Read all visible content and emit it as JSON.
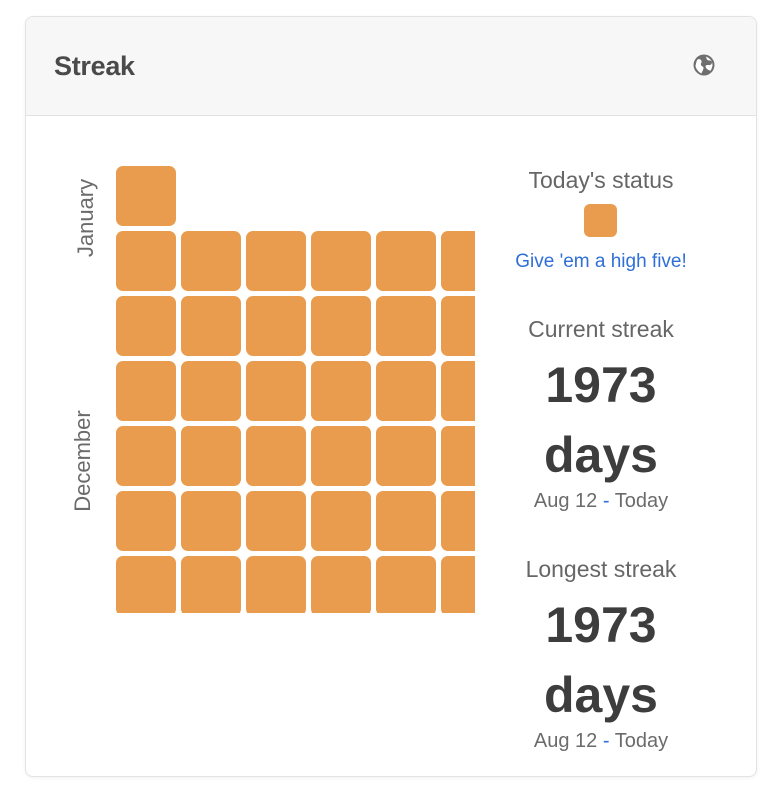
{
  "header": {
    "title": "Streak",
    "globe_icon": "globe-icon"
  },
  "colors": {
    "cell": "#E99C4D",
    "link": "#2F6FD6",
    "title": "#4A4A4A"
  },
  "calendar": {
    "month_labels": [
      "January",
      "December"
    ],
    "rows": [
      1,
      6,
      6,
      6,
      6,
      6,
      6
    ]
  },
  "today": {
    "title": "Today's status",
    "link_text": "Give 'em a high five!"
  },
  "current_streak": {
    "title": "Current streak",
    "count": "1973",
    "unit": "days",
    "start": "Aug 12",
    "separator": "-",
    "end": "Today"
  },
  "longest_streak": {
    "title": "Longest streak",
    "count": "1973",
    "unit": "days",
    "start": "Aug 12",
    "separator": "-",
    "end": "Today"
  }
}
